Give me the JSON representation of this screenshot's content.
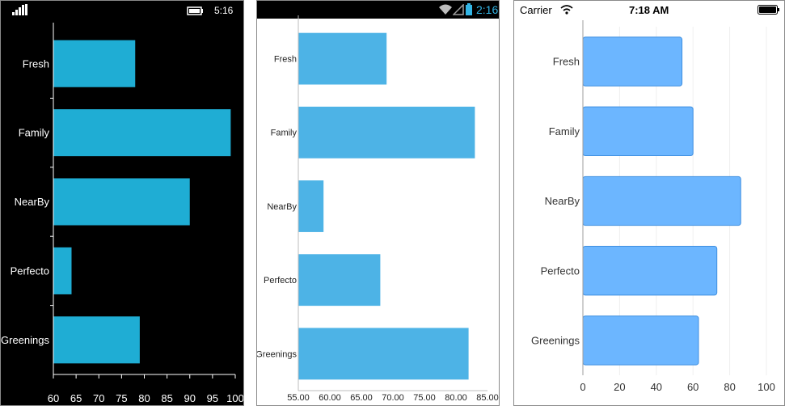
{
  "screens": [
    {
      "platform": "windows",
      "status": {
        "time": "5:16"
      },
      "chart_colors": {
        "bar": "#1fadd4",
        "axis": "#ffffff",
        "text": "#ffffff"
      }
    },
    {
      "platform": "android",
      "status": {
        "time": "2:16"
      },
      "chart_colors": {
        "bar": "#4db3e6",
        "axis": "#bdbdbd",
        "text": "#222222"
      }
    },
    {
      "platform": "ios",
      "status": {
        "carrier": "Carrier",
        "time": "7:18 AM"
      },
      "chart_colors": {
        "bar": "#6cb6ff",
        "bar_border": "#3f8fe0",
        "axis": "#9e9e9e",
        "text": "#333333"
      }
    }
  ],
  "chart_data": [
    {
      "type": "bar",
      "orientation": "horizontal",
      "categories": [
        "Fresh",
        "Family",
        "NearBy",
        "Perfecto",
        "Greenings"
      ],
      "values": [
        78,
        99,
        90,
        64,
        79
      ],
      "xlim": [
        60,
        100
      ],
      "xticks": [
        "60",
        "65",
        "70",
        "75",
        "80",
        "85",
        "90",
        "95",
        "100"
      ],
      "title": "",
      "xlabel": "",
      "ylabel": ""
    },
    {
      "type": "bar",
      "orientation": "horizontal",
      "categories": [
        "Fresh",
        "Family",
        "NearBy",
        "Perfecto",
        "Greenings"
      ],
      "values": [
        69,
        83,
        59,
        68,
        82
      ],
      "xlim": [
        55,
        85
      ],
      "xticks": [
        "55.00",
        "60.00",
        "65.00",
        "70.00",
        "75.00",
        "80.00",
        "85.00"
      ],
      "title": "",
      "xlabel": "",
      "ylabel": ""
    },
    {
      "type": "bar",
      "orientation": "horizontal",
      "categories": [
        "Fresh",
        "Family",
        "NearBy",
        "Perfecto",
        "Greenings"
      ],
      "values": [
        54,
        60,
        86,
        73,
        63
      ],
      "xlim": [
        0,
        100
      ],
      "xticks": [
        "0",
        "20",
        "40",
        "60",
        "80",
        "100"
      ],
      "grid": true,
      "title": "",
      "xlabel": "",
      "ylabel": ""
    }
  ]
}
